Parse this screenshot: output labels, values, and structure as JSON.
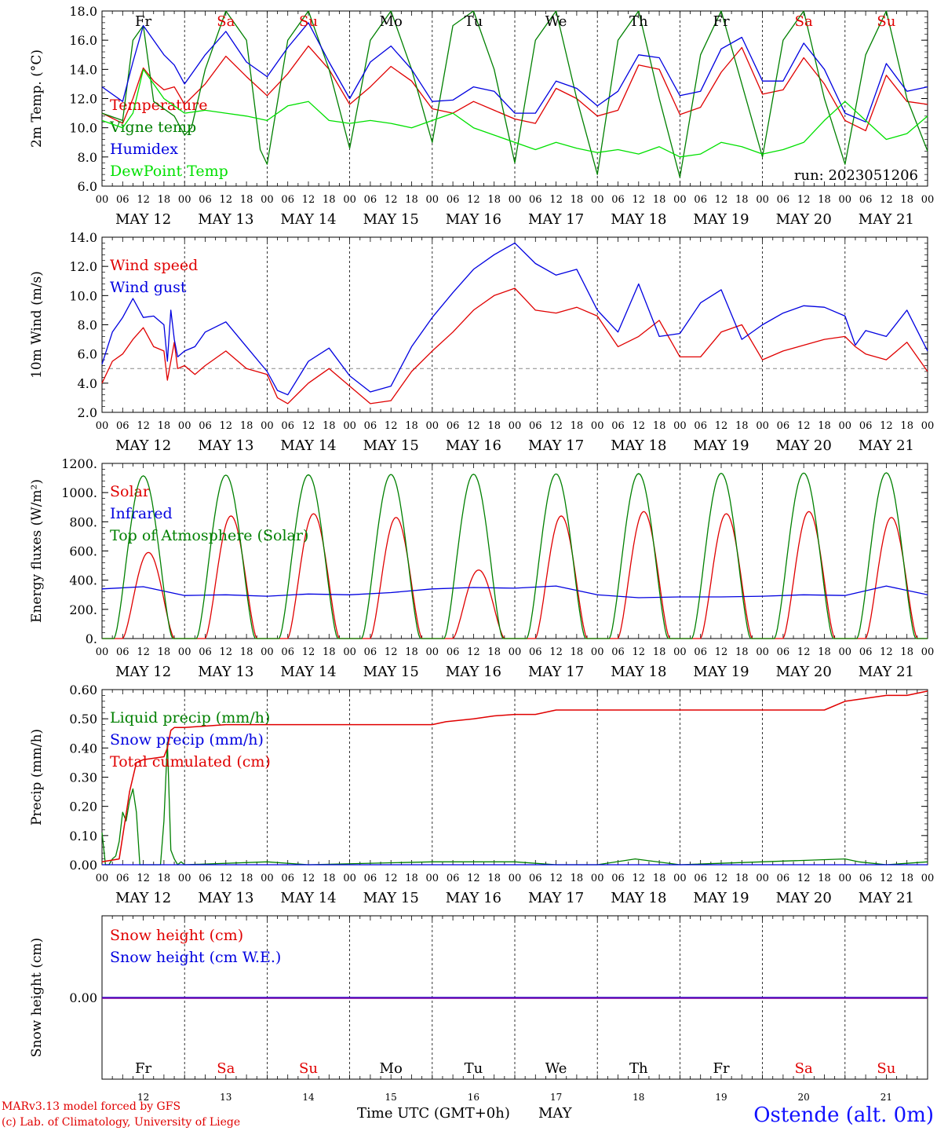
{
  "days": [
    "MAY 12",
    "MAY 13",
    "MAY 14",
    "MAY 15",
    "MAY 16",
    "MAY 17",
    "MAY 18",
    "MAY 19",
    "MAY 20",
    "MAY 21"
  ],
  "weekdays": [
    "Fr",
    "Sa",
    "Su",
    "Mo",
    "Tu",
    "We",
    "Th",
    "Fr",
    "Sa",
    "Su"
  ],
  "weekday_colors": [
    "#000000",
    "#e00000",
    "#e00000",
    "#000000",
    "#000000",
    "#000000",
    "#000000",
    "#000000",
    "#e00000",
    "#e00000"
  ],
  "day_numbers": [
    "12",
    "13",
    "14",
    "15",
    "16",
    "17",
    "18",
    "19",
    "20",
    "21"
  ],
  "hour_ticks": [
    "00",
    "06",
    "12",
    "18"
  ],
  "last_hour_tick": "00",
  "footer": {
    "model": "MARv3.13 model forced by GFS",
    "credit": "(c) Lab. of Climatology, University of Liege",
    "xlabel": "Time UTC (GMT+0h)",
    "month": "MAY",
    "station": "Ostende (alt. 0m)"
  },
  "chart_data": [
    {
      "type": "line",
      "ylabel": "2m Temp. (°C)",
      "ylim": [
        6.0,
        18.0
      ],
      "yticks": [
        "6.0",
        "8.0",
        "10.0",
        "12.0",
        "14.0",
        "16.0",
        "18.0"
      ],
      "run_label": "run: 2023051206",
      "x_unit": "hours since MAY 12 00 UTC",
      "series": [
        {
          "name": "Temperature",
          "color": "#e00000",
          "x": [
            0,
            6,
            9,
            12,
            15,
            18,
            21,
            24,
            30,
            36,
            42,
            48,
            54,
            60,
            66,
            72,
            78,
            84,
            90,
            96,
            102,
            108,
            114,
            120,
            126,
            132,
            138,
            144,
            150,
            156,
            162,
            168,
            174,
            180,
            186,
            192,
            198,
            204,
            210,
            216,
            222,
            228,
            234,
            240
          ],
          "y": [
            11.0,
            10.3,
            12.0,
            14.1,
            13.2,
            12.6,
            12.8,
            11.6,
            13.0,
            14.9,
            13.5,
            12.2,
            13.7,
            15.6,
            14.0,
            11.6,
            12.8,
            14.2,
            13.2,
            11.3,
            11.0,
            11.8,
            11.2,
            10.6,
            10.3,
            12.7,
            12.0,
            10.8,
            11.2,
            14.3,
            14.0,
            10.9,
            11.4,
            13.8,
            15.5,
            12.3,
            12.6,
            14.8,
            13.0,
            10.5,
            9.8,
            13.6,
            11.8,
            11.6
          ]
        },
        {
          "name": "Vigne temp",
          "color": "#008000",
          "x": [
            0,
            6,
            9,
            12,
            15,
            18,
            21,
            24,
            26,
            30,
            36,
            42,
            46,
            48,
            54,
            60,
            66,
            72,
            78,
            84,
            90,
            96,
            102,
            108,
            114,
            120,
            126,
            132,
            138,
            144,
            150,
            156,
            162,
            168,
            174,
            180,
            186,
            192,
            198,
            204,
            210,
            216,
            222,
            228,
            234,
            240
          ],
          "y": [
            11.0,
            10.5,
            16.0,
            17.0,
            11.8,
            11.3,
            10.8,
            9.5,
            10.0,
            14.0,
            18.0,
            16.0,
            8.5,
            7.5,
            16.0,
            18.0,
            14.0,
            8.6,
            16.0,
            18.0,
            14.0,
            9.0,
            17.0,
            18.0,
            14.0,
            7.6,
            16.0,
            18.0,
            12.0,
            6.8,
            16.0,
            18.0,
            12.0,
            6.6,
            15.0,
            18.0,
            13.0,
            8.0,
            16.0,
            18.0,
            12.0,
            7.5,
            15.0,
            18.0,
            12.0,
            8.4
          ]
        },
        {
          "name": "Humidex",
          "color": "#0000e0",
          "x": [
            0,
            6,
            9,
            12,
            15,
            18,
            21,
            24,
            30,
            36,
            42,
            48,
            54,
            60,
            66,
            72,
            78,
            84,
            90,
            96,
            102,
            108,
            114,
            120,
            126,
            132,
            138,
            144,
            150,
            156,
            162,
            168,
            174,
            180,
            186,
            192,
            198,
            204,
            210,
            216,
            222,
            228,
            234,
            240
          ],
          "y": [
            12.8,
            11.8,
            14.5,
            17.0,
            16.0,
            15.0,
            14.3,
            13.0,
            15.0,
            16.6,
            14.5,
            13.5,
            15.5,
            17.2,
            14.5,
            12.0,
            14.5,
            15.6,
            14.0,
            11.8,
            11.9,
            12.8,
            12.5,
            11.0,
            11.0,
            13.2,
            12.7,
            11.5,
            12.5,
            15.0,
            14.8,
            12.2,
            12.5,
            15.4,
            16.2,
            13.2,
            13.2,
            15.8,
            14.0,
            11.0,
            10.4,
            14.4,
            12.5,
            12.8
          ]
        },
        {
          "name": "DewPoint Temp",
          "color": "#00e000",
          "x": [
            0,
            6,
            9,
            12,
            15,
            18,
            21,
            24,
            30,
            36,
            42,
            48,
            54,
            60,
            66,
            72,
            78,
            84,
            90,
            96,
            102,
            108,
            114,
            120,
            126,
            132,
            138,
            144,
            150,
            156,
            162,
            168,
            174,
            180,
            186,
            192,
            198,
            204,
            210,
            216,
            222,
            228,
            234,
            240
          ],
          "y": [
            10.5,
            10.0,
            11.0,
            14.0,
            13.0,
            12.0,
            11.5,
            11.0,
            11.2,
            11.0,
            10.8,
            10.5,
            11.5,
            11.8,
            10.5,
            10.3,
            10.5,
            10.3,
            10.0,
            10.5,
            11.0,
            10.0,
            9.5,
            9.0,
            8.5,
            9.0,
            8.6,
            8.3,
            8.5,
            8.2,
            8.7,
            8.0,
            8.2,
            9.0,
            8.7,
            8.2,
            8.5,
            9.0,
            10.5,
            11.8,
            10.5,
            9.2,
            9.6,
            10.8
          ]
        }
      ]
    },
    {
      "type": "line",
      "ylabel": "10m Wind (m/s)",
      "ylim": [
        2.0,
        14.0
      ],
      "yticks": [
        "2.0",
        "4.0",
        "6.0",
        "8.0",
        "10.0",
        "12.0",
        "14.0"
      ],
      "reference_line": 5.0,
      "series": [
        {
          "name": "Wind speed",
          "color": "#e00000",
          "x": [
            0,
            3,
            6,
            9,
            12,
            15,
            18,
            19,
            21,
            22,
            24,
            27,
            30,
            36,
            42,
            48,
            51,
            54,
            60,
            66,
            72,
            78,
            84,
            90,
            96,
            102,
            108,
            114,
            120,
            126,
            132,
            138,
            144,
            150,
            156,
            162,
            168,
            174,
            180,
            186,
            192,
            198,
            204,
            210,
            216,
            219,
            222,
            228,
            234,
            240
          ],
          "y": [
            4.0,
            5.5,
            6.0,
            7.0,
            7.8,
            6.5,
            6.2,
            4.2,
            6.8,
            5.0,
            5.2,
            4.6,
            5.2,
            6.2,
            5.0,
            4.6,
            3.0,
            2.6,
            4.0,
            5.0,
            3.8,
            2.6,
            2.8,
            4.8,
            6.2,
            7.5,
            9.0,
            10.0,
            10.5,
            9.0,
            8.8,
            9.2,
            8.6,
            6.5,
            7.2,
            8.3,
            5.8,
            5.8,
            7.5,
            8.0,
            5.6,
            6.2,
            6.6,
            7.0,
            7.2,
            6.5,
            6.0,
            5.6,
            6.8,
            4.8
          ]
        },
        {
          "name": "Wind gust",
          "color": "#0000e0",
          "x": [
            0,
            3,
            6,
            9,
            12,
            15,
            18,
            19,
            20,
            21,
            22,
            24,
            27,
            30,
            36,
            42,
            48,
            51,
            54,
            60,
            66,
            72,
            78,
            84,
            90,
            96,
            102,
            108,
            114,
            120,
            126,
            132,
            138,
            144,
            150,
            156,
            162,
            168,
            174,
            180,
            186,
            192,
            198,
            204,
            210,
            216,
            219,
            222,
            228,
            234,
            240
          ],
          "y": [
            5.3,
            7.5,
            8.5,
            9.8,
            8.5,
            8.6,
            8.0,
            5.5,
            9.0,
            7.0,
            5.8,
            6.2,
            6.5,
            7.5,
            8.2,
            6.5,
            4.8,
            3.5,
            3.2,
            5.5,
            6.4,
            4.5,
            3.4,
            3.8,
            6.5,
            8.5,
            10.2,
            11.8,
            12.8,
            13.6,
            12.2,
            11.4,
            11.8,
            9.0,
            7.5,
            10.8,
            7.2,
            7.4,
            9.5,
            10.4,
            7.0,
            8.0,
            8.8,
            9.3,
            9.2,
            8.6,
            6.6,
            7.6,
            7.2,
            9.0,
            6.2
          ]
        }
      ]
    },
    {
      "type": "line",
      "ylabel": "Energy fluxes (W/m²)",
      "ylim": [
        0,
        1200
      ],
      "yticks": [
        "0.",
        "200.",
        "400.",
        "600.",
        "800.",
        "1000.",
        "1200."
      ],
      "series": [
        {
          "name": "Solar",
          "color": "#e00000",
          "daily_peaks": [
            590,
            840,
            855,
            830,
            470,
            840,
            870,
            855,
            870,
            830
          ],
          "peak_hour": 13.5,
          "day_length_h": 15
        },
        {
          "name": "Infrared",
          "color": "#0000e0",
          "x": [
            0,
            12,
            24,
            36,
            48,
            60,
            72,
            84,
            96,
            108,
            120,
            132,
            144,
            156,
            168,
            180,
            192,
            204,
            216,
            228,
            240
          ],
          "y": [
            340,
            355,
            295,
            300,
            290,
            305,
            300,
            315,
            340,
            350,
            345,
            360,
            300,
            280,
            285,
            285,
            290,
            300,
            295,
            360,
            300
          ]
        },
        {
          "name": "Top of Atmosphere (Solar)",
          "color": "#008000",
          "daily_peaks": [
            1115,
            1120,
            1122,
            1124,
            1126,
            1128,
            1130,
            1132,
            1134,
            1136
          ],
          "peak_hour": 12.0,
          "day_length_h": 17
        }
      ]
    },
    {
      "type": "line",
      "ylabel": "Precip (mm/h)",
      "ylim": [
        0.0,
        0.6
      ],
      "yticks": [
        "0.00",
        "0.10",
        "0.20",
        "0.30",
        "0.40",
        "0.50",
        "0.60"
      ],
      "series": [
        {
          "name": "Liquid precip (mm/h)",
          "color": "#008000",
          "x": [
            0,
            1,
            2,
            3,
            4,
            5,
            6,
            7,
            8,
            9,
            10,
            11,
            12,
            13,
            14,
            15,
            16,
            17,
            18,
            19,
            20,
            21,
            22,
            23,
            24,
            48,
            60,
            96,
            120,
            132,
            144,
            155,
            168,
            216,
            220,
            228,
            240
          ],
          "y": [
            0.11,
            0,
            0,
            0.02,
            0.03,
            0.08,
            0.18,
            0.15,
            0.22,
            0.26,
            0.18,
            0.0,
            0,
            0,
            0,
            0,
            0,
            0,
            0.15,
            0.42,
            0.05,
            0.02,
            0,
            0.01,
            0,
            0.01,
            0,
            0.01,
            0.01,
            0.0,
            0,
            0.02,
            0,
            0.02,
            0.01,
            0,
            0.01
          ]
        },
        {
          "name": "Snow precip (mm/h)",
          "color": "#0000e0",
          "x": [
            0,
            240
          ],
          "y": [
            0,
            0
          ]
        },
        {
          "name": "Total cumulated (cm)",
          "color": "#e00000",
          "x": [
            0,
            5,
            8,
            10,
            12,
            18,
            19,
            20,
            21,
            24,
            36,
            48,
            96,
            100,
            108,
            114,
            120,
            126,
            132,
            168,
            180,
            204,
            210,
            216,
            222,
            228,
            234,
            240
          ],
          "y": [
            0.01,
            0.02,
            0.25,
            0.35,
            0.36,
            0.37,
            0.4,
            0.46,
            0.47,
            0.47,
            0.48,
            0.48,
            0.48,
            0.49,
            0.5,
            0.51,
            0.515,
            0.515,
            0.53,
            0.53,
            0.53,
            0.53,
            0.53,
            0.56,
            0.57,
            0.58,
            0.58,
            0.595
          ]
        }
      ]
    },
    {
      "type": "line",
      "ylabel": "Snow height (cm)",
      "ylim": [
        -0.5,
        0.5
      ],
      "yticks": [
        "0.00"
      ],
      "series": [
        {
          "name": "Snow height (cm)",
          "color": "#e00000",
          "x": [
            0,
            240
          ],
          "y": [
            0,
            0
          ]
        },
        {
          "name": "Snow height (cm W.E.)",
          "color": "#0000e0",
          "x": [
            0,
            240
          ],
          "y": [
            0,
            0
          ]
        }
      ]
    }
  ]
}
